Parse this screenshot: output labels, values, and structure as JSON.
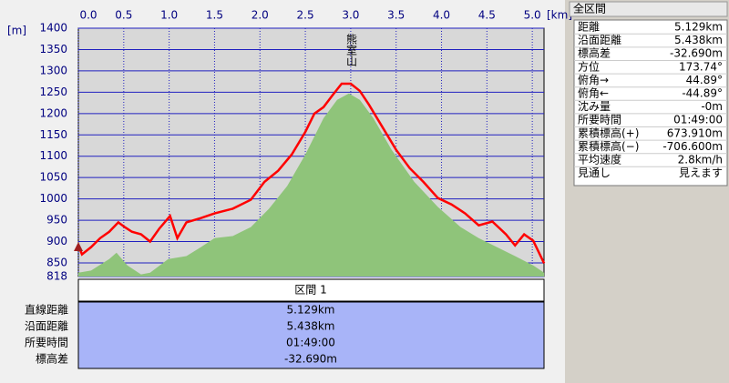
{
  "chart_data": {
    "type": "line",
    "xlabel": "[km]",
    "ylabel": "[m]",
    "annotation": "熊室山",
    "xlim": [
      0,
      5.129
    ],
    "ylim": [
      818,
      1400
    ],
    "xticks": [
      {
        "value": 0,
        "label": "0.0"
      },
      0.5,
      {
        "value": 1,
        "label": "1.0"
      },
      1.5,
      {
        "value": 2,
        "label": "2.0"
      },
      2.5,
      {
        "value": 3,
        "label": "3.0"
      },
      3.5,
      {
        "value": 4,
        "label": "4.0"
      },
      4.5,
      {
        "value": 5,
        "label": "5.0"
      }
    ],
    "yticks": [
      818,
      850,
      900,
      950,
      1000,
      1050,
      1100,
      1150,
      1200,
      1250,
      1300,
      1350,
      1400
    ],
    "grid": true,
    "series": [
      {
        "color": "#8fc47a",
        "fill": true,
        "x": [
          0,
          0.14,
          0.34,
          0.42,
          0.54,
          0.69,
          0.79,
          0.99,
          1.19,
          1.35,
          1.5,
          1.7,
          1.9,
          2.1,
          2.3,
          2.5,
          2.7,
          2.85,
          2.98,
          3.1,
          3.25,
          3.45,
          3.7,
          3.96,
          4.21,
          4.41,
          4.61,
          4.81,
          5.01,
          5.13
        ],
        "values": [
          827,
          832,
          859,
          874,
          844,
          823,
          827,
          859,
          866,
          887,
          908,
          913,
          934,
          977,
          1030,
          1104,
          1189,
          1232,
          1247,
          1232,
          1189,
          1115,
          1040,
          981,
          934,
          908,
          887,
          866,
          844,
          827
        ]
      },
      {
        "color": "#ff0000",
        "x": [
          0,
          0.04,
          0.14,
          0.24,
          0.34,
          0.44,
          0.51,
          0.59,
          0.69,
          0.79,
          0.89,
          1.01,
          1.09,
          1.19,
          1.35,
          1.5,
          1.7,
          1.9,
          2.05,
          2.2,
          2.35,
          2.5,
          2.6,
          2.7,
          2.8,
          2.9,
          3.0,
          3.1,
          3.2,
          3.35,
          3.5,
          3.65,
          3.8,
          3.96,
          4.11,
          4.26,
          4.41,
          4.56,
          4.71,
          4.81,
          4.91,
          5.01,
          5.13
        ],
        "values": [
          891,
          870,
          887,
          908,
          923,
          945,
          934,
          923,
          917,
          900,
          930,
          960,
          908,
          945,
          955,
          966,
          977,
          998,
          1040,
          1066,
          1104,
          1157,
          1200,
          1215,
          1243,
          1270,
          1270,
          1253,
          1221,
          1168,
          1115,
          1072,
          1040,
          1002,
          987,
          966,
          938,
          947,
          917,
          891,
          917,
          902,
          849
        ]
      }
    ]
  },
  "segment_table": {
    "header": "区間 1",
    "rows": [
      [
        "直線距離",
        "5.129km"
      ],
      [
        "沿面距離",
        "5.438km"
      ],
      [
        "所要時間",
        "01:49:00"
      ],
      [
        "標高差",
        "-32.690m"
      ]
    ]
  },
  "summary_panel": {
    "title": "全区間",
    "rows": [
      [
        "距離",
        "5.129km"
      ],
      [
        "沿面距離",
        "5.438km"
      ],
      [
        "標高差",
        "-32.690m"
      ],
      [
        "方位",
        "173.74°"
      ],
      [
        "俯角→",
        "44.89°"
      ],
      [
        "俯角←",
        "-44.89°"
      ],
      [
        "沈み量",
        "-0m"
      ],
      [
        "所要時間",
        "01:49:00"
      ],
      [
        "累積標高(+)",
        "673.910m"
      ],
      [
        "累積標高(−)",
        "-706.600m"
      ],
      [
        "平均速度",
        "2.8km/h"
      ],
      [
        "見通し",
        "見えます"
      ]
    ]
  }
}
